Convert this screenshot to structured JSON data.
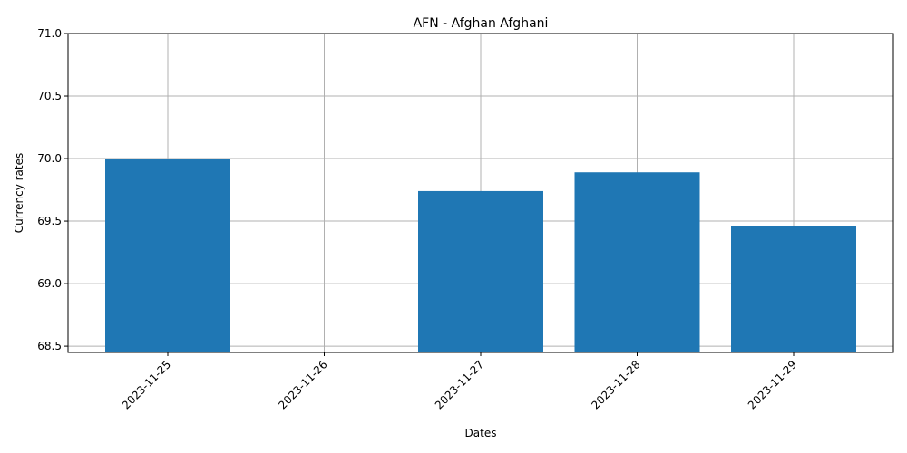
{
  "chart_data": {
    "type": "bar",
    "title": "AFN - Afghan Afghani",
    "xlabel": "Dates",
    "ylabel": "Currency rates",
    "categories": [
      "2023-11-25",
      "2023-11-26",
      "2023-11-27",
      "2023-11-28",
      "2023-11-29"
    ],
    "values": [
      70.0,
      null,
      69.74,
      69.89,
      69.46
    ],
    "ylim": [
      68.45,
      71.0
    ],
    "yticks": [
      "68.5",
      "69.0",
      "69.5",
      "70.0",
      "70.5",
      "71.0"
    ],
    "grid": true,
    "bar_color": "#1f77b4",
    "grid_color": "#b0b0b0"
  }
}
